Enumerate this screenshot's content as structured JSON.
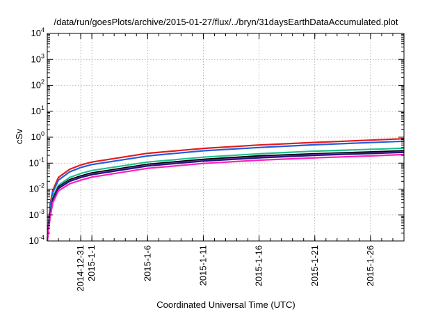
{
  "chart_data": {
    "type": "line",
    "title": "/data/run/goesPlots/archive/2015-01-27/flux/../bryn/31daysEarthDataAccumulated.plot",
    "xlabel": "Coordinated Universal Time (UTC)",
    "ylabel": "cSv",
    "x_scale": "time",
    "y_scale": "log",
    "xlim": [
      "2014-12-28",
      "2015-01-29"
    ],
    "ylim": [
      0.0001,
      10000
    ],
    "grid": true,
    "legend": "none",
    "x_ticks": [
      "2014-12-31",
      "2015-1-1",
      "2015-1-6",
      "2015-1-11",
      "2015-1-16",
      "2015-1-21",
      "2015-1-26"
    ],
    "y_ticks": [
      {
        "value": 0.0001,
        "mantissa": "10",
        "exp": "-4"
      },
      {
        "value": 0.001,
        "mantissa": "10",
        "exp": "-3"
      },
      {
        "value": 0.01,
        "mantissa": "10",
        "exp": "-2"
      },
      {
        "value": 0.1,
        "mantissa": "10",
        "exp": "-1"
      },
      {
        "value": 1,
        "mantissa": "10",
        "exp": "0"
      },
      {
        "value": 10,
        "mantissa": "10",
        "exp": "1"
      },
      {
        "value": 100,
        "mantissa": "10",
        "exp": "2"
      },
      {
        "value": 1000,
        "mantissa": "10",
        "exp": "3"
      },
      {
        "value": 10000,
        "mantissa": "10",
        "exp": "4"
      }
    ],
    "series": [
      {
        "color": "#e41a1c",
        "x": [
          "2014-12-28",
          "2014-12-28T06:00",
          "2014-12-28T12:00",
          "2014-12-29",
          "2014-12-30",
          "2014-12-31",
          "2015-01-01",
          "2015-01-06",
          "2015-01-11",
          "2015-01-16",
          "2015-01-21",
          "2015-01-26",
          "2015-01-29"
        ],
        "values": [
          0.0001,
          0.0025,
          0.009,
          0.028,
          0.058,
          0.085,
          0.11,
          0.24,
          0.37,
          0.5,
          0.63,
          0.77,
          0.88
        ]
      },
      {
        "color": "#1f5fe0",
        "x": [
          "2014-12-28",
          "2014-12-28T06:00",
          "2014-12-28T12:00",
          "2014-12-29",
          "2014-12-30",
          "2014-12-31",
          "2015-01-01",
          "2015-01-06",
          "2015-01-11",
          "2015-01-16",
          "2015-01-21",
          "2015-01-26",
          "2015-01-29"
        ],
        "values": [
          0.0001,
          0.002,
          0.0075,
          0.022,
          0.046,
          0.068,
          0.088,
          0.19,
          0.3,
          0.4,
          0.51,
          0.62,
          0.7
        ]
      },
      {
        "color": "#1fbf8f",
        "x": [
          "2014-12-28",
          "2014-12-28T06:00",
          "2014-12-28T12:00",
          "2014-12-29",
          "2014-12-30",
          "2014-12-31",
          "2015-01-01",
          "2015-01-06",
          "2015-01-11",
          "2015-01-16",
          "2015-01-21",
          "2015-01-26",
          "2015-01-29"
        ],
        "values": [
          0.0001,
          0.0013,
          0.005,
          0.014,
          0.028,
          0.04,
          0.052,
          0.11,
          0.17,
          0.23,
          0.29,
          0.34,
          0.38
        ]
      },
      {
        "color": "#000000",
        "x": [
          "2014-12-28",
          "2014-12-28T06:00",
          "2014-12-28T12:00",
          "2014-12-29",
          "2014-12-30",
          "2014-12-31",
          "2015-01-01",
          "2015-01-06",
          "2015-01-11",
          "2015-01-16",
          "2015-01-21",
          "2015-01-26",
          "2015-01-29"
        ],
        "values": [
          0.0001,
          0.0011,
          0.0042,
          0.012,
          0.023,
          0.032,
          0.042,
          0.09,
          0.14,
          0.19,
          0.23,
          0.27,
          0.3
        ]
      },
      {
        "color": "#8e44ad",
        "x": [
          "2014-12-28",
          "2014-12-28T06:00",
          "2014-12-28T12:00",
          "2014-12-29",
          "2014-12-30",
          "2014-12-31",
          "2015-01-01",
          "2015-01-06",
          "2015-01-11",
          "2015-01-16",
          "2015-01-21",
          "2015-01-26",
          "2015-01-29"
        ],
        "values": [
          0.0001,
          0.001,
          0.0038,
          0.011,
          0.021,
          0.029,
          0.038,
          0.082,
          0.125,
          0.17,
          0.21,
          0.245,
          0.27
        ]
      },
      {
        "color": "#1a1a7a",
        "x": [
          "2014-12-28",
          "2014-12-28T06:00",
          "2014-12-28T12:00",
          "2014-12-29",
          "2014-12-30",
          "2014-12-31",
          "2015-01-01",
          "2015-01-06",
          "2015-01-11",
          "2015-01-16",
          "2015-01-21",
          "2015-01-26",
          "2015-01-29"
        ],
        "values": [
          0.0001,
          0.00095,
          0.0036,
          0.0105,
          0.02,
          0.028,
          0.036,
          0.078,
          0.12,
          0.16,
          0.2,
          0.235,
          0.26
        ]
      },
      {
        "color": "#ff1fbf",
        "x": [
          "2014-12-28",
          "2014-12-28T06:00",
          "2014-12-28T12:00",
          "2014-12-29",
          "2014-12-30",
          "2014-12-31",
          "2015-01-01",
          "2015-01-06",
          "2015-01-11",
          "2015-01-16",
          "2015-01-21",
          "2015-01-26",
          "2015-01-29"
        ],
        "values": [
          0.0001,
          0.0008,
          0.003,
          0.0085,
          0.016,
          0.022,
          0.029,
          0.063,
          0.097,
          0.13,
          0.16,
          0.19,
          0.215
        ]
      }
    ]
  }
}
